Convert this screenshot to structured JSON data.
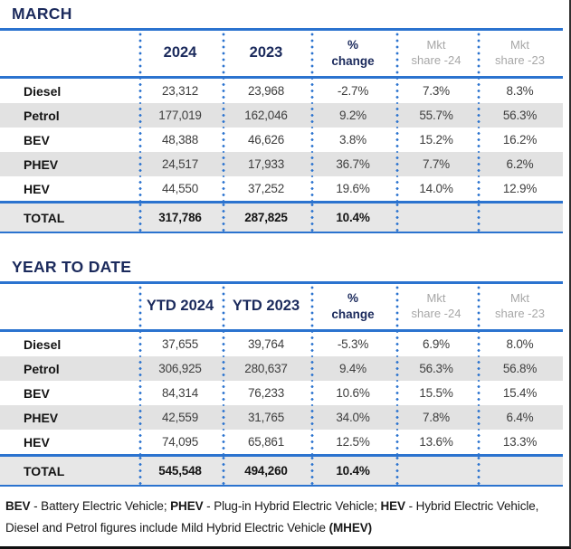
{
  "colors": {
    "title_navy": "#1B2A5C",
    "rule_and_dots_blue": "#2B73CF",
    "mkt_header_gray": "#A7A7A7",
    "zebra_row_gray": "#E2E2E2",
    "total_row_gray": "#E7E7E7",
    "data_text": "#3E3E3E",
    "edge_border_dark": "#101010"
  },
  "tables": [
    {
      "id": "march",
      "title": "MARCH",
      "columns": [
        "",
        "2024",
        "2023",
        "%\nchange",
        "Mkt\nshare -24",
        "Mkt\nshare -23"
      ],
      "rows": [
        {
          "label": "Diesel",
          "v2024": "23,312",
          "v2023": "23,968",
          "change": "-2.7%",
          "share24": "7.3%",
          "share23": "8.3%"
        },
        {
          "label": "Petrol",
          "v2024": "177,019",
          "v2023": "162,046",
          "change": "9.2%",
          "share24": "55.7%",
          "share23": "56.3%"
        },
        {
          "label": "BEV",
          "v2024": "48,388",
          "v2023": "46,626",
          "change": "3.8%",
          "share24": "15.2%",
          "share23": "16.2%"
        },
        {
          "label": "PHEV",
          "v2024": "24,517",
          "v2023": "17,933",
          "change": "36.7%",
          "share24": "7.7%",
          "share23": "6.2%"
        },
        {
          "label": "HEV",
          "v2024": "44,550",
          "v2023": "37,252",
          "change": "19.6%",
          "share24": "14.0%",
          "share23": "12.9%"
        },
        {
          "label": "TOTAL",
          "v2024": "317,786",
          "v2023": "287,825",
          "change": "10.4%",
          "share24": "",
          "share23": "",
          "total": true
        }
      ]
    },
    {
      "id": "ytd",
      "title": "YEAR TO DATE",
      "columns": [
        "",
        "YTD 2024",
        "YTD 2023",
        "%\nchange",
        "Mkt\nshare -24",
        "Mkt\nshare -23"
      ],
      "rows": [
        {
          "label": "Diesel",
          "v2024": "37,655",
          "v2023": "39,764",
          "change": "-5.3%",
          "share24": "6.9%",
          "share23": "8.0%"
        },
        {
          "label": "Petrol",
          "v2024": "306,925",
          "v2023": "280,637",
          "change": "9.4%",
          "share24": "56.3%",
          "share23": "56.8%"
        },
        {
          "label": "BEV",
          "v2024": "84,314",
          "v2023": "76,233",
          "change": "10.6%",
          "share24": "15.5%",
          "share23": "15.4%"
        },
        {
          "label": "PHEV",
          "v2024": "42,559",
          "v2023": "31,765",
          "change": "34.0%",
          "share24": "7.8%",
          "share23": "6.4%"
        },
        {
          "label": "HEV",
          "v2024": "74,095",
          "v2023": "65,861",
          "change": "12.5%",
          "share24": "13.6%",
          "share23": "13.3%"
        },
        {
          "label": "TOTAL",
          "v2024": "545,548",
          "v2023": "494,260",
          "change": "10.4%",
          "share24": "",
          "share23": "",
          "total": true
        }
      ]
    }
  ],
  "footnote": {
    "lines": [
      [
        {
          "t": "BEV",
          "b": true
        },
        {
          "t": " - Battery Electric Vehicle; "
        },
        {
          "t": "PHEV",
          "b": true
        },
        {
          "t": " - Plug-in Hybrid Electric Vehicle; "
        },
        {
          "t": "HEV",
          "b": true
        },
        {
          "t": " - Hybrid Electric Vehicle,"
        }
      ],
      [
        {
          "t": "Diesel and Petrol figures include Mild Hybrid Electric Vehicle "
        },
        {
          "t": "(MHEV)",
          "b": true
        }
      ]
    ]
  }
}
